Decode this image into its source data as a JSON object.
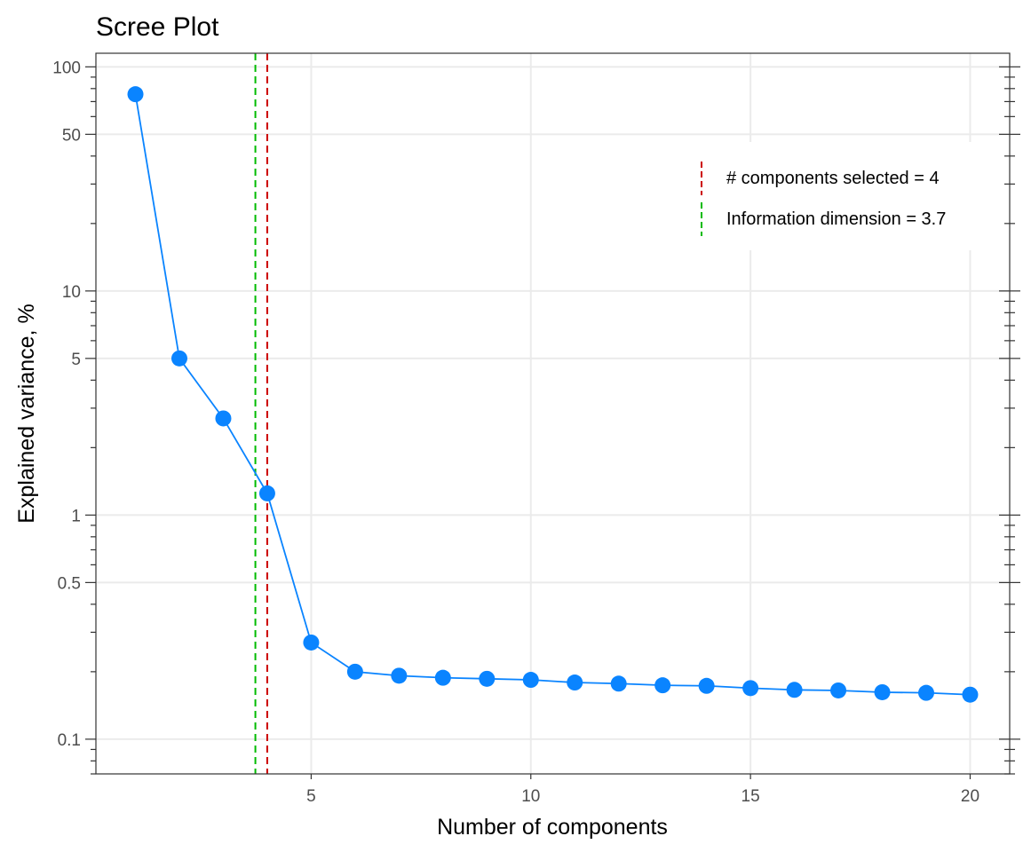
{
  "chart_data": {
    "type": "line",
    "title": "Scree Plot",
    "xlabel": "Number of components",
    "ylabel": "Explained variance, %",
    "y_scale": "log10",
    "ylim": [
      0.07,
      115
    ],
    "xlim": [
      0.1,
      20.9
    ],
    "x_ticks": [
      5,
      10,
      15,
      20
    ],
    "y_ticks": [
      0.1,
      0.5,
      1,
      5,
      10,
      50,
      100
    ],
    "y_tick_labels": [
      "0.1",
      "0.5",
      "1",
      "5",
      "10",
      "50",
      "100"
    ],
    "grid": true,
    "series": [
      {
        "color": "#0a84ff",
        "x": [
          1,
          2,
          3,
          4,
          5,
          6,
          7,
          8,
          9,
          10,
          11,
          12,
          13,
          14,
          15,
          16,
          17,
          18,
          19,
          20
        ],
        "values": [
          75.5,
          5.0,
          2.7,
          1.25,
          0.27,
          0.2,
          0.192,
          0.188,
          0.186,
          0.184,
          0.179,
          0.177,
          0.174,
          0.173,
          0.169,
          0.166,
          0.165,
          0.162,
          0.161,
          0.158
        ]
      }
    ],
    "reference_lines": [
      {
        "label": "# components selected = 4",
        "x": 4,
        "color": "#cc0000",
        "style": "dashed"
      },
      {
        "label": "Information dimension = 3.7",
        "x": 3.73,
        "color": "#00bb00",
        "style": "dashed"
      }
    ],
    "legend_position": "top-right"
  }
}
